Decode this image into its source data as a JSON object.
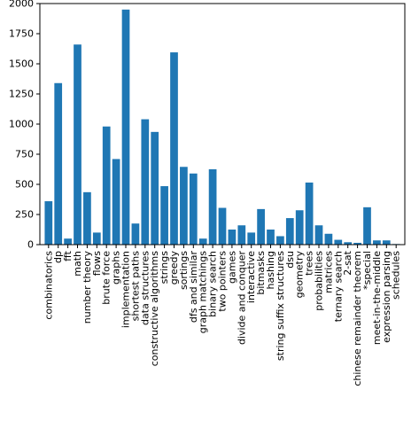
{
  "chart_data": {
    "type": "bar",
    "title": "",
    "xlabel": "",
    "ylabel": "",
    "ylim": [
      0,
      2000
    ],
    "yticks": [
      0,
      250,
      500,
      750,
      1000,
      1250,
      1500,
      1750,
      2000
    ],
    "ytick_labels": [
      "0",
      "250",
      "500",
      "750",
      "1000",
      "1250",
      "1500",
      "1750",
      "2000"
    ],
    "grid": false,
    "legend": "none",
    "bar_color": "#1f77b4",
    "categories": [
      "combinatorics",
      "dp",
      "fft",
      "math",
      "number theory",
      "flows",
      "brute force",
      "graphs",
      "implementation",
      "shortest paths",
      "data structures",
      "constructive algorithms",
      "strings",
      "greedy",
      "sortings",
      "dfs and similar",
      "graph matchings",
      "binary search",
      "two pointers",
      "games",
      "divide and conquer",
      "interactive",
      "bitmasks",
      "hashing",
      "string suffix structures",
      "dsu",
      "geometry",
      "trees",
      "probabilities",
      "matrices",
      "ternary search",
      "2-sat",
      "chinese remainder theorem",
      "*special",
      "meet-in-the-middle",
      "expression parsing",
      "schedules"
    ],
    "values": [
      360,
      1340,
      50,
      1660,
      435,
      100,
      980,
      710,
      1950,
      175,
      1040,
      935,
      485,
      1595,
      645,
      590,
      50,
      625,
      305,
      125,
      160,
      100,
      295,
      125,
      70,
      220,
      285,
      515,
      160,
      90,
      40,
      20,
      15,
      310,
      35,
      35,
      5
    ]
  }
}
